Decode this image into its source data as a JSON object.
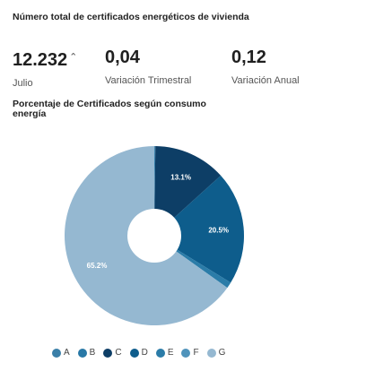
{
  "header": {
    "title": "Número total de certificados energéticos de vivienda"
  },
  "kpis": [
    {
      "value": "12.232",
      "label": "Julio",
      "trend_icon": "caret-up-icon"
    },
    {
      "value": "0,04",
      "label": "Variación Trimestral"
    },
    {
      "value": "0,12",
      "label": "Variación Anual"
    }
  ],
  "chart_section": {
    "title": "Porcentaje de Certificados según consumo energía"
  },
  "chart_data": {
    "type": "pie",
    "categories": [
      "A",
      "B",
      "C",
      "D",
      "E",
      "F",
      "G"
    ],
    "values": [
      0.1,
      0.1,
      13.1,
      20.5,
      1.1,
      0,
      65.2
    ],
    "data_labels": [
      "",
      "",
      "13.1%",
      "20.5%",
      "",
      "",
      "65.2%"
    ],
    "colors": [
      "#3a7fa8",
      "#2878a6",
      "#0d3e66",
      "#0e5d8c",
      "#2b7ca8",
      "#4f93bb",
      "#95b8d1"
    ],
    "legend_position": "bottom",
    "donut_hole": true
  },
  "legend": {
    "items": [
      {
        "label": "A",
        "color": "#3a7fa8"
      },
      {
        "label": "B",
        "color": "#2878a6"
      },
      {
        "label": "C",
        "color": "#0d3e66"
      },
      {
        "label": "D",
        "color": "#0e5d8c"
      },
      {
        "label": "E",
        "color": "#2b7ca8"
      },
      {
        "label": "F",
        "color": "#4f93bb"
      },
      {
        "label": "G",
        "color": "#95b8d1"
      }
    ]
  }
}
